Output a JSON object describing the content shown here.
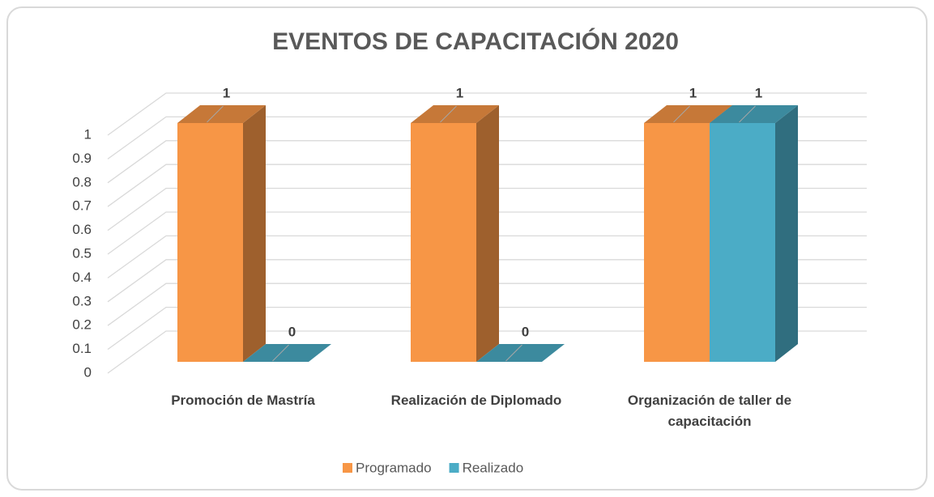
{
  "chart_data": {
    "type": "bar3d",
    "title": "EVENTOS DE CAPACITACIÓN 2020",
    "categories": [
      "Promoción de Mastría",
      "Realización de Diplomado",
      "Organización de taller de capacitación"
    ],
    "series": [
      {
        "name": "Programado",
        "color": "#f79646",
        "values": [
          1,
          1,
          1
        ]
      },
      {
        "name": "Realizado",
        "color": "#4bacc6",
        "values": [
          0,
          0,
          1
        ]
      }
    ],
    "ylim": [
      0,
      1
    ],
    "yticks": [
      0,
      0.1,
      0.2,
      0.3,
      0.4,
      0.5,
      0.6,
      0.7,
      0.8,
      0.9,
      1
    ],
    "grid": true,
    "legend": "bottom"
  }
}
